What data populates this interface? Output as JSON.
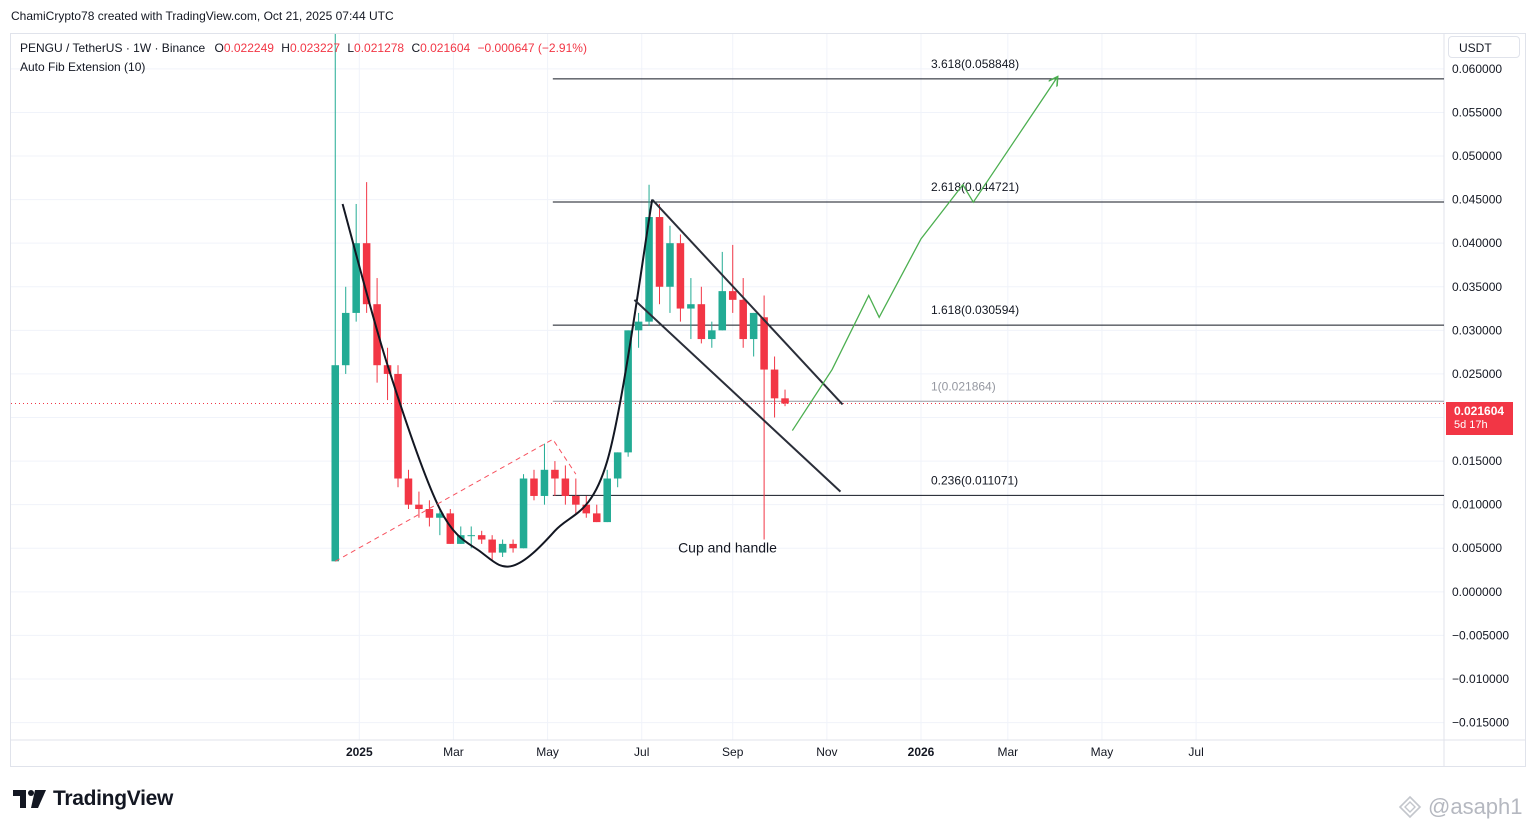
{
  "header": {
    "credit": "ChamiCrypto78 created with TradingView.com, Oct 21, 2025 07:44 UTC"
  },
  "legend": {
    "symbol": "PENGU / TetherUS · 1W · Binance",
    "o_label": "O",
    "o_value": "0.022249",
    "h_label": "H",
    "h_value": "0.023227",
    "l_label": "L",
    "l_value": "0.021278",
    "c_label": "C",
    "c_value": "0.021604",
    "change": "−0.000647 (−2.91%)",
    "indicator": "Auto Fib Extension (10)"
  },
  "currency": "USDT",
  "last_price": {
    "value": "0.021604",
    "countdown": "5d 17h"
  },
  "branding": {
    "logo_text": "TradingView",
    "watermark": "@asaph1"
  },
  "colors": {
    "up": "#22ab94",
    "down": "#f23645",
    "projection": "#4caf50",
    "pattern": "#131722",
    "grid": "#f0f3fa"
  },
  "chart_data": {
    "type": "candlestick",
    "title": "PENGU / TetherUS · 1W · Binance",
    "y_axis": {
      "ylim": [
        -0.017,
        0.064
      ],
      "tick_values": [
        0.06,
        0.055,
        0.05,
        0.045,
        0.04,
        0.035,
        0.03,
        0.025,
        0.02,
        0.015,
        0.01,
        0.005,
        0.0,
        -0.005,
        -0.01,
        -0.015
      ],
      "tick_labels": [
        "0.060000",
        "0.055000",
        "0.050000",
        "0.045000",
        "0.040000",
        "0.035000",
        "0.030000",
        "0.025000",
        "0.020000",
        "0.015000",
        "0.010000",
        "0.005000",
        "0.000000",
        "−0.005000",
        "−0.010000",
        "−0.015000"
      ]
    },
    "x_axis": {
      "unit": "weeks since 2024-12-16",
      "xlim": [
        -31,
        106
      ],
      "ticks": [
        {
          "label": "2025",
          "week": 2.3,
          "bold": true
        },
        {
          "label": "Mar",
          "week": 11.3
        },
        {
          "label": "May",
          "week": 20.3
        },
        {
          "label": "Jul",
          "week": 29.3
        },
        {
          "label": "Sep",
          "week": 38.0
        },
        {
          "label": "Nov",
          "week": 47.0
        },
        {
          "label": "2026",
          "week": 56.0,
          "bold": true
        },
        {
          "label": "Mar",
          "week": 64.3
        },
        {
          "label": "May",
          "week": 73.3
        },
        {
          "label": "Jul",
          "week": 82.3
        }
      ]
    },
    "candles": [
      {
        "w": 0,
        "o": 0.0035,
        "h": 0.064,
        "l": 0.0035,
        "c": 0.026
      },
      {
        "w": 1,
        "o": 0.026,
        "h": 0.035,
        "l": 0.025,
        "c": 0.032
      },
      {
        "w": 2,
        "o": 0.032,
        "h": 0.0445,
        "l": 0.031,
        "c": 0.04
      },
      {
        "w": 3,
        "o": 0.04,
        "h": 0.047,
        "l": 0.032,
        "c": 0.033
      },
      {
        "w": 4,
        "o": 0.033,
        "h": 0.036,
        "l": 0.024,
        "c": 0.026
      },
      {
        "w": 5,
        "o": 0.026,
        "h": 0.028,
        "l": 0.022,
        "c": 0.025
      },
      {
        "w": 6,
        "o": 0.025,
        "h": 0.026,
        "l": 0.012,
        "c": 0.013
      },
      {
        "w": 7,
        "o": 0.013,
        "h": 0.014,
        "l": 0.0095,
        "c": 0.01
      },
      {
        "w": 8,
        "o": 0.01,
        "h": 0.0115,
        "l": 0.0085,
        "c": 0.0095
      },
      {
        "w": 9,
        "o": 0.0095,
        "h": 0.0105,
        "l": 0.0075,
        "c": 0.0085
      },
      {
        "w": 10,
        "o": 0.0085,
        "h": 0.0095,
        "l": 0.0065,
        "c": 0.009
      },
      {
        "w": 11,
        "o": 0.009,
        "h": 0.0095,
        "l": 0.0055,
        "c": 0.0055
      },
      {
        "w": 12,
        "o": 0.0055,
        "h": 0.0075,
        "l": 0.0055,
        "c": 0.0065
      },
      {
        "w": 13,
        "o": 0.0065,
        "h": 0.0075,
        "l": 0.005,
        "c": 0.0065
      },
      {
        "w": 14,
        "o": 0.0065,
        "h": 0.007,
        "l": 0.0055,
        "c": 0.006
      },
      {
        "w": 15,
        "o": 0.006,
        "h": 0.0065,
        "l": 0.0035,
        "c": 0.0045
      },
      {
        "w": 16,
        "o": 0.0045,
        "h": 0.006,
        "l": 0.004,
        "c": 0.0055
      },
      {
        "w": 17,
        "o": 0.0055,
        "h": 0.006,
        "l": 0.0045,
        "c": 0.005
      },
      {
        "w": 18,
        "o": 0.005,
        "h": 0.0135,
        "l": 0.005,
        "c": 0.013
      },
      {
        "w": 19,
        "o": 0.013,
        "h": 0.014,
        "l": 0.0105,
        "c": 0.011
      },
      {
        "w": 20,
        "o": 0.011,
        "h": 0.017,
        "l": 0.01,
        "c": 0.014
      },
      {
        "w": 21,
        "o": 0.014,
        "h": 0.015,
        "l": 0.011,
        "c": 0.013
      },
      {
        "w": 22,
        "o": 0.013,
        "h": 0.0145,
        "l": 0.01,
        "c": 0.011
      },
      {
        "w": 23,
        "o": 0.011,
        "h": 0.013,
        "l": 0.009,
        "c": 0.01
      },
      {
        "w": 24,
        "o": 0.01,
        "h": 0.011,
        "l": 0.0085,
        "c": 0.009
      },
      {
        "w": 25,
        "o": 0.009,
        "h": 0.01,
        "l": 0.008,
        "c": 0.008
      },
      {
        "w": 26,
        "o": 0.008,
        "h": 0.014,
        "l": 0.008,
        "c": 0.013
      },
      {
        "w": 27,
        "o": 0.013,
        "h": 0.016,
        "l": 0.012,
        "c": 0.016
      },
      {
        "w": 28,
        "o": 0.016,
        "h": 0.03,
        "l": 0.0155,
        "c": 0.03
      },
      {
        "w": 29,
        "o": 0.03,
        "h": 0.032,
        "l": 0.028,
        "c": 0.031
      },
      {
        "w": 30,
        "o": 0.031,
        "h": 0.0467,
        "l": 0.0305,
        "c": 0.043
      },
      {
        "w": 31,
        "o": 0.043,
        "h": 0.0445,
        "l": 0.033,
        "c": 0.035
      },
      {
        "w": 32,
        "o": 0.035,
        "h": 0.042,
        "l": 0.032,
        "c": 0.04
      },
      {
        "w": 33,
        "o": 0.04,
        "h": 0.041,
        "l": 0.031,
        "c": 0.0325
      },
      {
        "w": 34,
        "o": 0.0325,
        "h": 0.036,
        "l": 0.029,
        "c": 0.033
      },
      {
        "w": 35,
        "o": 0.033,
        "h": 0.035,
        "l": 0.0285,
        "c": 0.029
      },
      {
        "w": 36,
        "o": 0.029,
        "h": 0.031,
        "l": 0.028,
        "c": 0.03
      },
      {
        "w": 37,
        "o": 0.03,
        "h": 0.039,
        "l": 0.03,
        "c": 0.0345
      },
      {
        "w": 38,
        "o": 0.0345,
        "h": 0.0398,
        "l": 0.032,
        "c": 0.0335
      },
      {
        "w": 39,
        "o": 0.0335,
        "h": 0.036,
        "l": 0.028,
        "c": 0.029
      },
      {
        "w": 40,
        "o": 0.029,
        "h": 0.032,
        "l": 0.027,
        "c": 0.032
      },
      {
        "w": 41,
        "o": 0.0315,
        "h": 0.034,
        "l": 0.006,
        "c": 0.0255
      },
      {
        "w": 42,
        "o": 0.0255,
        "h": 0.027,
        "l": 0.02,
        "c": 0.0222
      },
      {
        "w": 43,
        "o": 0.0222,
        "h": 0.0232,
        "l": 0.0213,
        "c": 0.0216
      }
    ],
    "fib_levels": [
      {
        "label": "3.618(0.058848)",
        "value": 0.058848
      },
      {
        "label": "2.618(0.044721)",
        "value": 0.044721
      },
      {
        "label": "1.618(0.030594)",
        "value": 0.030594
      },
      {
        "label": "1(0.021864)",
        "value": 0.021864
      },
      {
        "label": "0.236(0.011071)",
        "value": 0.011071
      }
    ],
    "fib_range_weeks": [
      20.8,
      106
    ],
    "annotations": [
      {
        "type": "text",
        "text": "Cup and handle",
        "week": 37.5,
        "value": 0.0045
      },
      {
        "type": "cup-curve",
        "points": [
          [
            0.7,
            0.0445
          ],
          [
            5,
            0.026
          ],
          [
            10,
            0.0095
          ],
          [
            14,
            0.0045
          ],
          [
            17,
            0.003
          ],
          [
            21,
            0.007
          ],
          [
            26,
            0.015
          ],
          [
            30.3,
            0.045
          ]
        ]
      },
      {
        "type": "channel-upper",
        "from": [
          30.3,
          0.045
        ],
        "to": [
          48.5,
          0.0215
        ]
      },
      {
        "type": "channel-lower",
        "from": [
          28.6,
          0.0335
        ],
        "to": [
          48.3,
          0.0115
        ]
      },
      {
        "type": "dashed-trend",
        "points": [
          [
            0,
            0.0035
          ],
          [
            20.8,
            0.0175
          ],
          [
            23,
            0.0135
          ]
        ]
      },
      {
        "type": "projection",
        "points": [
          [
            43.7,
            0.0185
          ],
          [
            47.5,
            0.0255
          ],
          [
            51,
            0.034
          ],
          [
            52,
            0.0315
          ],
          [
            56,
            0.0405
          ],
          [
            60,
            0.0467
          ],
          [
            61,
            0.0447
          ],
          [
            69,
            0.059
          ],
          [
            68.5,
            0.0585
          ],
          [
            69,
            0.059
          ],
          [
            68.4,
            0.059
          ]
        ]
      }
    ]
  }
}
